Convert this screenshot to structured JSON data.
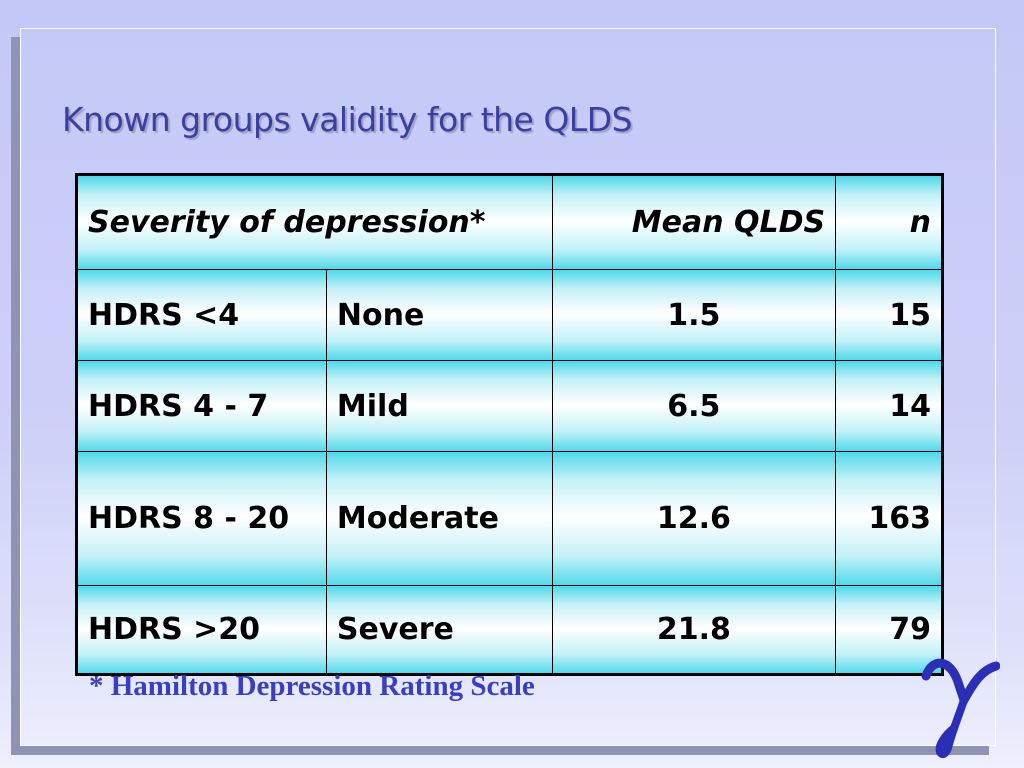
{
  "slide": {
    "title": "Known groups validity for the QLDS",
    "footnote": "* Hamilton Depression Rating Scale",
    "logo_text": "γ",
    "colors": {
      "title": "#3a3fa0",
      "footnote": "#3a3fc0",
      "table_cell_edge": "#4fd9ea",
      "background": "#c5c9f7"
    }
  },
  "table": {
    "headers": {
      "severity": "Severity of depression*",
      "mean": "Mean QLDS",
      "n": "n"
    },
    "rows": [
      {
        "hdrs": "HDRS <4",
        "level": "None",
        "mean": "1.5",
        "n": "15"
      },
      {
        "hdrs": "HDRS 4 - 7",
        "level": "Mild",
        "mean": "6.5",
        "n": "14"
      },
      {
        "hdrs": "HDRS 8 - 20",
        "level": "Moderate",
        "mean": "12.6",
        "n": "163"
      },
      {
        "hdrs": "HDRS >20",
        "level": "Severe",
        "mean": "21.8",
        "n": "79"
      }
    ]
  }
}
